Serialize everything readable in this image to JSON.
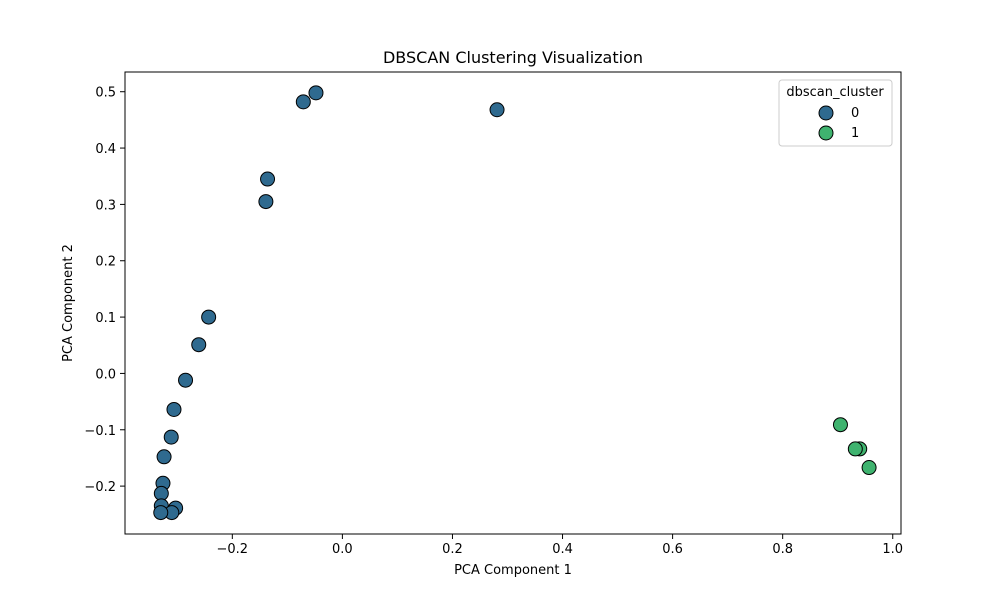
{
  "chart_data": {
    "type": "scatter",
    "title": "DBSCAN Clustering Visualization",
    "xlabel": "PCA Component 1",
    "ylabel": "PCA Component 2",
    "xlim": [
      -0.395,
      1.015
    ],
    "ylim": [
      -0.285,
      0.535
    ],
    "xticks": [
      -0.2,
      0.0,
      0.2,
      0.4,
      0.6,
      0.8,
      1.0
    ],
    "xtick_labels": [
      "−0.2",
      "0.0",
      "0.2",
      "0.4",
      "0.6",
      "0.8",
      "1.0"
    ],
    "yticks": [
      -0.2,
      -0.1,
      0.0,
      0.1,
      0.2,
      0.3,
      0.4,
      0.5
    ],
    "ytick_labels": [
      "−0.2",
      "−0.1",
      "0.0",
      "0.1",
      "0.2",
      "0.3",
      "0.4",
      "0.5"
    ],
    "grid": false,
    "legend": {
      "title": "dbscan_cluster",
      "location": "upper right"
    },
    "series": [
      {
        "name": "0",
        "color": "#2f6a8f",
        "points": [
          [
            -0.048,
            0.498
          ],
          [
            -0.071,
            0.482
          ],
          [
            0.281,
            0.468
          ],
          [
            -0.136,
            0.345
          ],
          [
            -0.139,
            0.305
          ],
          [
            -0.243,
            0.1
          ],
          [
            -0.261,
            0.051
          ],
          [
            -0.285,
            -0.012
          ],
          [
            -0.306,
            -0.064
          ],
          [
            -0.311,
            -0.113
          ],
          [
            -0.324,
            -0.148
          ],
          [
            -0.326,
            -0.195
          ],
          [
            -0.329,
            -0.213
          ],
          [
            -0.329,
            -0.235
          ],
          [
            -0.303,
            -0.239
          ],
          [
            -0.31,
            -0.247
          ],
          [
            -0.33,
            -0.247
          ]
        ]
      },
      {
        "name": "1",
        "color": "#3fb36f",
        "points": [
          [
            0.905,
            -0.091
          ],
          [
            0.94,
            -0.134
          ],
          [
            0.932,
            -0.134
          ],
          [
            0.957,
            -0.167
          ]
        ]
      }
    ]
  }
}
